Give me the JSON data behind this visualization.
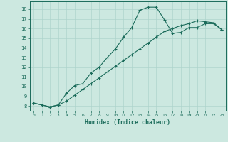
{
  "title": "",
  "xlabel": "Humidex (Indice chaleur)",
  "xlim": [
    -0.5,
    23.5
  ],
  "ylim": [
    7.5,
    18.8
  ],
  "yticks": [
    8,
    9,
    10,
    11,
    12,
    13,
    14,
    15,
    16,
    17,
    18
  ],
  "xticks": [
    0,
    1,
    2,
    3,
    4,
    5,
    6,
    7,
    8,
    9,
    10,
    11,
    12,
    13,
    14,
    15,
    16,
    17,
    18,
    19,
    20,
    21,
    22,
    23
  ],
  "bg_color": "#cce8e0",
  "line_color": "#1a6b5a",
  "grid_color": "#aed4cc",
  "line1_x": [
    0,
    1,
    2,
    3,
    4,
    5,
    6,
    7,
    8,
    9,
    10,
    11,
    12,
    13,
    14,
    15,
    16,
    17,
    18,
    19,
    20,
    21,
    22,
    23
  ],
  "line1_y": [
    8.3,
    8.1,
    7.9,
    8.1,
    9.3,
    10.1,
    10.3,
    11.4,
    12.0,
    13.0,
    13.9,
    15.1,
    16.1,
    17.9,
    18.2,
    18.2,
    16.9,
    15.5,
    15.6,
    16.1,
    16.1,
    16.5,
    16.5,
    15.9
  ],
  "line2_x": [
    0,
    1,
    2,
    3,
    4,
    5,
    6,
    7,
    8,
    9,
    10,
    11,
    12,
    13,
    14,
    15,
    16,
    17,
    18,
    19,
    20,
    21,
    22,
    23
  ],
  "line2_y": [
    8.3,
    8.1,
    7.9,
    8.1,
    8.5,
    9.1,
    9.7,
    10.3,
    10.9,
    11.5,
    12.1,
    12.7,
    13.3,
    13.9,
    14.5,
    15.1,
    15.7,
    16.0,
    16.3,
    16.5,
    16.8,
    16.7,
    16.6,
    15.9
  ]
}
